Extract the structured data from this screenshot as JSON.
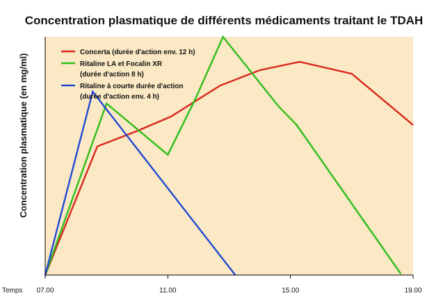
{
  "chart_data": {
    "type": "line",
    "title": "Concentration plasmatique de différents médicaments traitant le TDAH",
    "xlabel": "Temps",
    "ylabel": "Concentration plasmatique (en mg/ml)",
    "x_ticks": [
      "07.00",
      "11.00",
      "15.00",
      "19.00"
    ],
    "xlim": [
      7,
      19
    ],
    "ylim": [
      0,
      10
    ],
    "grid": false,
    "legend_position": "top-left",
    "background_color": "#fbe8c4",
    "series": [
      {
        "name_lines": [
          "Concerta (durée d'action env. 12 h)"
        ],
        "color": "#d9261c",
        "points": [
          [
            7.0,
            0.0
          ],
          [
            8.7,
            5.4
          ],
          [
            10.0,
            6.05
          ],
          [
            11.1,
            6.65
          ],
          [
            12.7,
            7.95
          ],
          [
            14.0,
            8.6
          ],
          [
            15.3,
            8.95
          ],
          [
            17.0,
            8.45
          ],
          [
            19.0,
            6.3
          ]
        ]
      },
      {
        "name_lines": [
          "Ritaline LA et Focalin XR",
          "(durée d'action 8 h)"
        ],
        "color": "#2ebd19",
        "points": [
          [
            7.0,
            0.0
          ],
          [
            9.0,
            7.2
          ],
          [
            11.0,
            5.05
          ],
          [
            11.9,
            7.4
          ],
          [
            12.8,
            10.0
          ],
          [
            14.6,
            7.1
          ],
          [
            15.2,
            6.3
          ],
          [
            18.6,
            0.05
          ]
        ]
      },
      {
        "name_lines": [
          "Ritaline à courte durée d'action",
          "(durée d'action env. 4 h)"
        ],
        "color": "#1f49d6",
        "points": [
          [
            7.0,
            0.0
          ],
          [
            8.55,
            7.7
          ],
          [
            13.2,
            0.0
          ]
        ]
      }
    ]
  }
}
